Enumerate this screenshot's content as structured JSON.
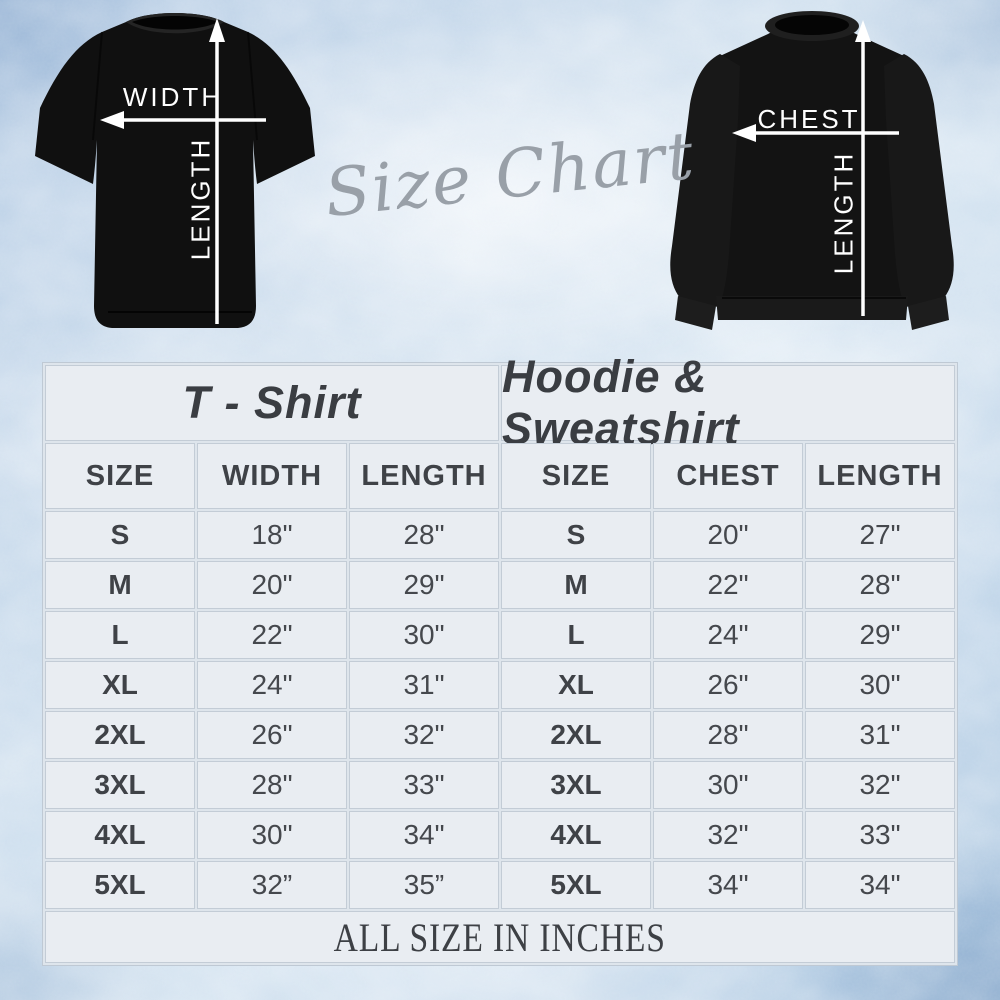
{
  "title_script": "Size Chart",
  "footer_note": "ALL SIZE IN INCHES",
  "diagrams": {
    "tshirt": {
      "garment": "t-shirt",
      "horizontal_label": "WIDTH",
      "vertical_label": "LENGTH"
    },
    "hoodie": {
      "garment": "sweatshirt",
      "horizontal_label": "CHEST",
      "vertical_label": "LENGTH"
    }
  },
  "colors": {
    "garment_black": "#101010",
    "arrow_white": "#ffffff",
    "table_cell_bg": "#e9edf2",
    "table_border": "#c3ccd6",
    "table_text": "#45484d",
    "script_gray": "#99a0a8",
    "background_blue": "#c9dcee"
  },
  "chart_data": [
    {
      "type": "table",
      "title": "T - Shirt",
      "columns": [
        "SIZE",
        "WIDTH",
        "LENGTH"
      ],
      "rows": [
        [
          "S",
          "18\"",
          "28\""
        ],
        [
          "M",
          "20\"",
          "29\""
        ],
        [
          "L",
          "22\"",
          "30\""
        ],
        [
          "XL",
          "24\"",
          "31\""
        ],
        [
          "2XL",
          "26\"",
          "32\""
        ],
        [
          "3XL",
          "28\"",
          "33\""
        ],
        [
          "4XL",
          "30\"",
          "34\""
        ],
        [
          "5XL",
          "32”",
          "35”"
        ]
      ],
      "units": "inches"
    },
    {
      "type": "table",
      "title": "Hoodie & Sweatshirt",
      "columns": [
        "SIZE",
        "CHEST",
        "LENGTH"
      ],
      "rows": [
        [
          "S",
          "20\"",
          "27\""
        ],
        [
          "M",
          "22\"",
          "28\""
        ],
        [
          "L",
          "24\"",
          "29\""
        ],
        [
          "XL",
          "26\"",
          "30\""
        ],
        [
          "2XL",
          "28\"",
          "31\""
        ],
        [
          "3XL",
          "30\"",
          "32\""
        ],
        [
          "4XL",
          "32\"",
          "33\""
        ],
        [
          "5XL",
          "34\"",
          "34\""
        ]
      ],
      "units": "inches"
    }
  ]
}
